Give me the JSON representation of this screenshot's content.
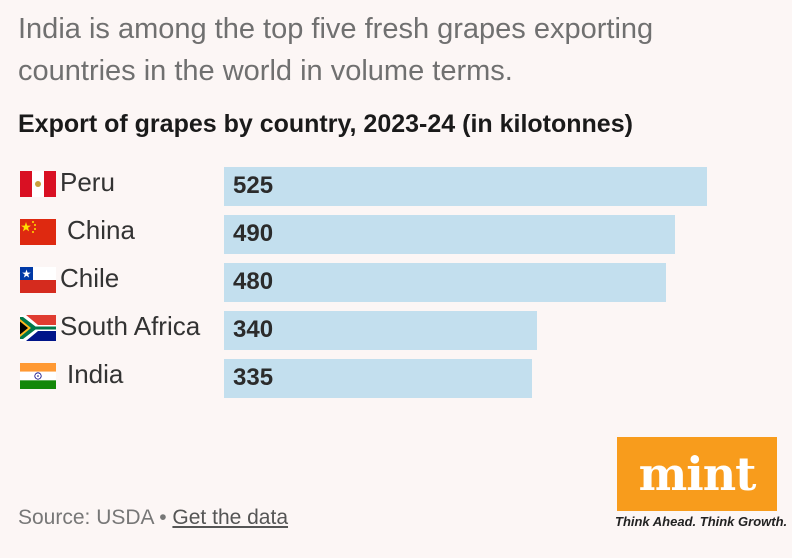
{
  "headline": "India is among the top five fresh grapes exporting countries in the world in volume terms.",
  "chart_data": {
    "type": "bar",
    "orientation": "horizontal",
    "title": "Export of grapes by country, 2023-24 (in kilotonnes)",
    "categories": [
      "Peru",
      "China",
      "Chile",
      "South Africa",
      "India"
    ],
    "values": [
      525,
      490,
      480,
      340,
      335
    ],
    "flags": [
      "peru-flag-icon",
      "china-flag-icon",
      "chile-flag-icon",
      "south-africa-flag-icon",
      "india-flag-icon"
    ],
    "bar_color": "#c3dfee",
    "xlim": [
      0,
      525
    ],
    "xlabel": "",
    "ylabel": ""
  },
  "footer": {
    "source_prefix": "Source: USDA • ",
    "get_data_link": "Get the data"
  },
  "brand": {
    "logo_text": "mint",
    "tagline": "Think Ahead. Think Growth.",
    "logo_color": "#f89c1c"
  }
}
